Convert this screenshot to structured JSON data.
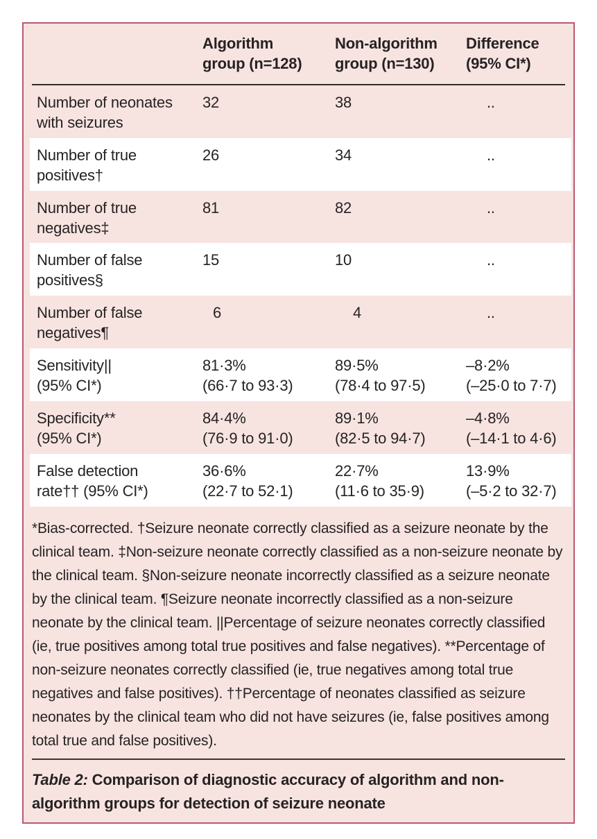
{
  "table": {
    "header": {
      "col2": "Algorithm\ngroup (n=128)",
      "col3": "Non-algorithm\ngroup (n=130)",
      "col4": "Difference\n(95% CI*)"
    },
    "rows": [
      {
        "label": "Number of neonates\nwith seizures",
        "algorithm": "32",
        "non_algorithm": "38",
        "difference": ".."
      },
      {
        "label": "Number of true\npositives†",
        "algorithm": "26",
        "non_algorithm": "34",
        "difference": ".."
      },
      {
        "label": "Number of true\nnegatives‡",
        "algorithm": "81",
        "non_algorithm": "82",
        "difference": ".."
      },
      {
        "label": "Number of false\npositives§",
        "algorithm": "15",
        "non_algorithm": "10",
        "difference": ".."
      },
      {
        "label": "Number of false\nnegatives¶",
        "algorithm": "6",
        "non_algorithm": "4",
        "difference": ".."
      },
      {
        "label": "Sensitivity||\n(95% CI*)",
        "algorithm": "81·3%\n(66·7 to 93·3)",
        "non_algorithm": "89·5%\n(78·4 to 97·5)",
        "difference": "–8·2%\n(–25·0 to 7·7)"
      },
      {
        "label": "Specificity**\n(95% CI*)",
        "algorithm": "84·4%\n(76·9 to 91·0)",
        "non_algorithm": "89·1%\n(82·5 to 94·7)",
        "difference": "–4·8%\n(–14·1 to 4·6)"
      },
      {
        "label": "False detection\nrate†† (95% CI*)",
        "algorithm": "36·6%\n(22·7 to 52·1)",
        "non_algorithm": "22·7%\n(11·6 to 35·9)",
        "difference": "13·9%\n(–5·2 to 32·7)"
      }
    ],
    "footnote": "*Bias-corrected. †Seizure neonate correctly classified as a seizure neonate by the clinical team. ‡Non-seizure neonate correctly classified as a non-seizure neonate by the clinical team. §Non-seizure neonate incorrectly classified as a seizure neonate by the clinical team. ¶Seizure neonate incorrectly classified as a non-seizure neonate by the clinical team. ||Percentage of seizure neonates correctly classified (ie, true positives among total true positives and false negatives). **Percentage of non-seizure neonates correctly classified (ie, true negatives among total true negatives and false positives). ††Percentage of neonates classified as seizure neonates by the clinical team who did not have seizures (ie, false positives among total true and false positives).",
    "caption": {
      "label": "Table 2:",
      "text": " Comparison of diagnostic accuracy of algorithm and non-algorithm groups for detection of seizure neonate"
    }
  },
  "colors": {
    "card_background": "#f7e4e0",
    "card_border": "#bb5872",
    "stripe": "#ffffff",
    "text": "#262224",
    "rule": "#322c29"
  }
}
